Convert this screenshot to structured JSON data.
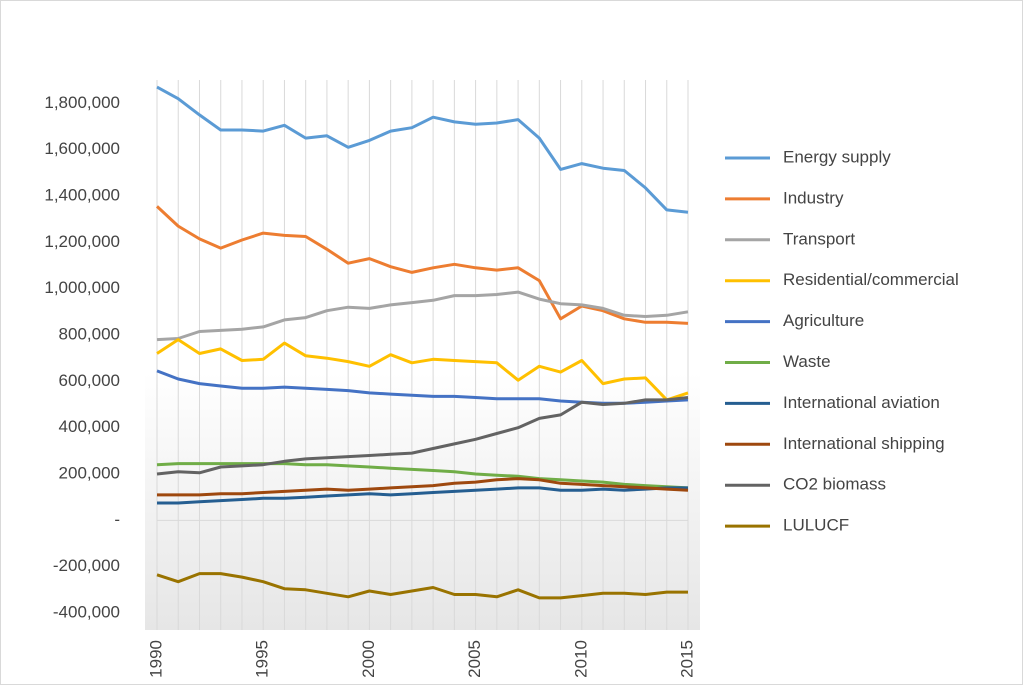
{
  "chart_data": {
    "type": "line",
    "x": [
      1990,
      1991,
      1992,
      1993,
      1994,
      1995,
      1996,
      1997,
      1998,
      1999,
      2000,
      2001,
      2002,
      2003,
      2004,
      2005,
      2006,
      2007,
      2008,
      2009,
      2010,
      2011,
      2012,
      2013,
      2014,
      2015
    ],
    "xlim": [
      1990,
      2015
    ],
    "xticks": [
      1990,
      1995,
      2000,
      2005,
      2010,
      2015
    ],
    "ylim": [
      -400000,
      2000000
    ],
    "yticks": [
      {
        "value": -400000,
        "label": "-400,000"
      },
      {
        "value": -200000,
        "label": "-200,000"
      },
      {
        "value": 0,
        "label": "-"
      },
      {
        "value": 200000,
        "label": "200,000"
      },
      {
        "value": 400000,
        "label": "400,000"
      },
      {
        "value": 600000,
        "label": "600,000"
      },
      {
        "value": 800000,
        "label": "800,000"
      },
      {
        "value": 1000000,
        "label": "1,000,000"
      },
      {
        "value": 1200000,
        "label": "1,200,000"
      },
      {
        "value": 1400000,
        "label": "1,400,000"
      },
      {
        "value": 1600000,
        "label": "1,600,000"
      },
      {
        "value": 1800000,
        "label": "1,800,000"
      }
    ],
    "legend": "right",
    "series": [
      {
        "name": "Energy supply",
        "color": "#5b9bd5",
        "values": [
          1870000,
          1820000,
          1750000,
          1685000,
          1685000,
          1680000,
          1705000,
          1650000,
          1660000,
          1610000,
          1640000,
          1680000,
          1695000,
          1740000,
          1720000,
          1710000,
          1715000,
          1730000,
          1650000,
          1515000,
          1540000,
          1520000,
          1510000,
          1435000,
          1340000,
          1330000
        ]
      },
      {
        "name": "Industry",
        "color": "#ed7d31",
        "values": [
          1355000,
          1270000,
          1215000,
          1175000,
          1210000,
          1240000,
          1230000,
          1225000,
          1170000,
          1110000,
          1130000,
          1095000,
          1070000,
          1090000,
          1105000,
          1090000,
          1080000,
          1090000,
          1035000,
          870000,
          925000,
          905000,
          870000,
          855000,
          855000,
          850000
        ]
      },
      {
        "name": "Transport",
        "color": "#a5a5a5",
        "values": [
          780000,
          785000,
          815000,
          820000,
          825000,
          835000,
          865000,
          875000,
          905000,
          920000,
          915000,
          930000,
          940000,
          950000,
          970000,
          970000,
          975000,
          985000,
          955000,
          935000,
          930000,
          915000,
          885000,
          880000,
          885000,
          900000
        ]
      },
      {
        "name": "Residential/commercial",
        "color": "#ffc000",
        "values": [
          720000,
          780000,
          720000,
          740000,
          690000,
          695000,
          765000,
          710000,
          700000,
          685000,
          665000,
          715000,
          680000,
          695000,
          690000,
          685000,
          680000,
          605000,
          665000,
          640000,
          690000,
          590000,
          610000,
          615000,
          520000,
          550000
        ]
      },
      {
        "name": "Agriculture",
        "color": "#4472c4",
        "values": [
          645000,
          610000,
          590000,
          580000,
          570000,
          570000,
          575000,
          570000,
          565000,
          560000,
          550000,
          545000,
          540000,
          535000,
          535000,
          530000,
          525000,
          525000,
          525000,
          515000,
          510000,
          505000,
          505000,
          510000,
          515000,
          520000
        ]
      },
      {
        "name": "Waste",
        "color": "#70ad47",
        "values": [
          240000,
          245000,
          245000,
          245000,
          245000,
          245000,
          245000,
          240000,
          240000,
          235000,
          230000,
          225000,
          220000,
          215000,
          210000,
          200000,
          195000,
          190000,
          180000,
          175000,
          170000,
          165000,
          155000,
          150000,
          145000,
          140000
        ]
      },
      {
        "name": "International aviation",
        "color": "#255e91",
        "values": [
          75000,
          75000,
          80000,
          85000,
          90000,
          95000,
          95000,
          100000,
          105000,
          110000,
          115000,
          110000,
          115000,
          120000,
          125000,
          130000,
          135000,
          140000,
          140000,
          130000,
          130000,
          135000,
          130000,
          135000,
          140000,
          140000
        ]
      },
      {
        "name": "International shipping",
        "color": "#9e480e",
        "values": [
          110000,
          110000,
          110000,
          115000,
          115000,
          120000,
          125000,
          130000,
          135000,
          130000,
          135000,
          140000,
          145000,
          150000,
          160000,
          165000,
          175000,
          180000,
          175000,
          160000,
          155000,
          150000,
          145000,
          140000,
          135000,
          130000
        ]
      },
      {
        "name": "CO2 biomass",
        "color": "#636363",
        "values": [
          200000,
          210000,
          205000,
          230000,
          235000,
          240000,
          255000,
          265000,
          270000,
          275000,
          280000,
          285000,
          290000,
          310000,
          330000,
          350000,
          375000,
          400000,
          440000,
          455000,
          510000,
          500000,
          505000,
          520000,
          520000,
          530000
        ]
      },
      {
        "name": "LULUCF",
        "color": "#997300",
        "values": [
          -235000,
          -265000,
          -230000,
          -230000,
          -245000,
          -265000,
          -295000,
          -300000,
          -315000,
          -330000,
          -305000,
          -320000,
          -305000,
          -290000,
          -320000,
          -320000,
          -330000,
          -300000,
          -335000,
          -335000,
          -325000,
          -315000,
          -315000,
          -320000,
          -310000,
          -310000
        ]
      }
    ]
  }
}
